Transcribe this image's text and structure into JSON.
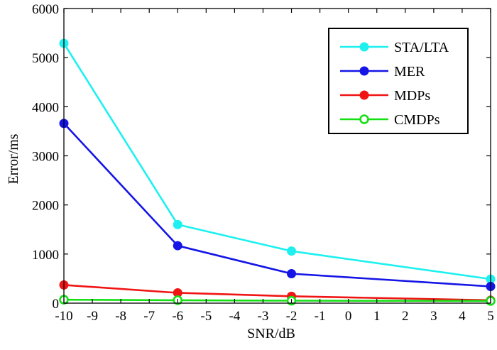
{
  "chart_data": {
    "type": "line",
    "title": "",
    "xlabel": "SNR/dB",
    "ylabel": "Error/ms",
    "xlim": [
      -10,
      5
    ],
    "ylim": [
      0,
      6000
    ],
    "xticks": [
      -10,
      -9,
      -8,
      -7,
      -6,
      -5,
      -4,
      -3,
      -2,
      -1,
      0,
      1,
      2,
      3,
      4,
      5
    ],
    "yticks": [
      0,
      1000,
      2000,
      3000,
      4000,
      5000,
      6000
    ],
    "x": [
      -10,
      -6,
      -2,
      5
    ],
    "legend_position": "top-right",
    "series": [
      {
        "name": "STA/LTA",
        "color": "#1ef0f0",
        "marker": "filled-circle",
        "values": [
          5290,
          1600,
          1060,
          490
        ]
      },
      {
        "name": "MER",
        "color": "#1515e6",
        "marker": "filled-circle",
        "values": [
          3660,
          1170,
          600,
          340
        ]
      },
      {
        "name": "MDPs",
        "color": "#f01515",
        "marker": "filled-circle",
        "values": [
          370,
          210,
          140,
          60
        ]
      },
      {
        "name": "CMDPs",
        "color": "#14e014",
        "marker": "open-circle",
        "values": [
          70,
          60,
          50,
          45
        ]
      }
    ]
  }
}
